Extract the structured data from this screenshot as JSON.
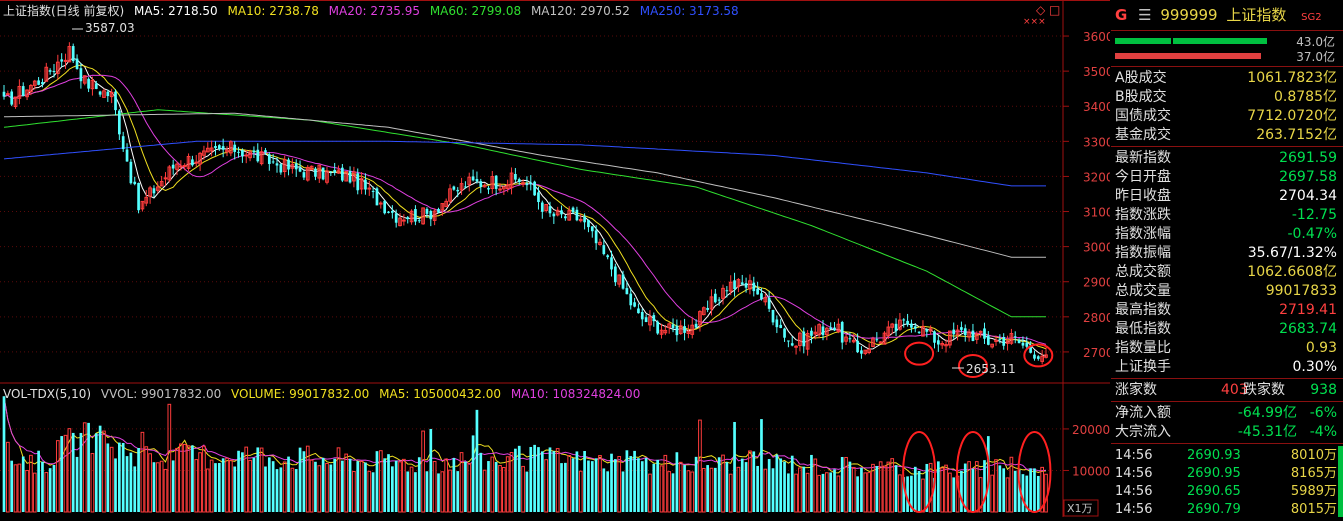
{
  "header": {
    "title": "上证指数(日线 前复权)",
    "ma": [
      {
        "label": "MA5: 2718.50",
        "color": "#ffffff"
      },
      {
        "label": "MA10: 2738.78",
        "color": "#f0e020"
      },
      {
        "label": "MA20: 2735.95",
        "color": "#e040e0"
      },
      {
        "label": "MA60: 2799.08",
        "color": "#30e030"
      },
      {
        "label": "MA120: 2970.52",
        "color": "#c0c0c0"
      },
      {
        "label": "MA250: 3173.58",
        "color": "#3050ff"
      }
    ]
  },
  "volume_header": {
    "title": "VOL-TDX(5,10)",
    "items": [
      {
        "label": "VVOL: 99017832.00",
        "color": "#c0c0c0"
      },
      {
        "label": "VOLUME: 99017832.00",
        "color": "#f0e020"
      },
      {
        "label": "MA5: 105000432.00",
        "color": "#f0e020"
      },
      {
        "label": "MA10: 108324824.00",
        "color": "#e040e0"
      }
    ]
  },
  "annotations": {
    "high": "3587.03",
    "low": "2653.11"
  },
  "icons": {
    "diamond": "◇",
    "square": "□",
    "crosses": "×××"
  },
  "volume_unit": "X1万",
  "chart_data": [
    {
      "type": "candlestick",
      "title": "上证指数(日线 前复权)",
      "ylim": [
        2620,
        3640
      ],
      "y_ticks": [
        2700,
        2800,
        2900,
        3000,
        3100,
        3200,
        3300,
        3400,
        3500,
        3600
      ],
      "anchors_x_index": [
        0,
        10,
        17,
        21,
        28,
        35,
        45,
        60,
        75,
        90,
        102,
        110,
        120,
        135,
        142,
        150,
        158,
        165,
        173,
        180,
        188,
        195,
        205,
        215,
        222,
        229,
        236,
        243,
        250,
        256,
        262,
        267,
        271
      ],
      "anchors_close": [
        3410,
        3480,
        3560,
        3470,
        3430,
        3110,
        3240,
        3280,
        3220,
        3200,
        3090,
        3090,
        3180,
        3190,
        3090,
        3080,
        2940,
        2800,
        2760,
        2780,
        2890,
        2890,
        2720,
        2780,
        2700,
        2750,
        2790,
        2730,
        2760,
        2730,
        2740,
        2705,
        2692
      ],
      "ma_lines": [
        {
          "name": "MA60",
          "color": "#30e030",
          "anchors_x_index": [
            0,
            40,
            80,
            120,
            150,
            180,
            210,
            240,
            262
          ],
          "values": [
            3340,
            3390,
            3360,
            3290,
            3220,
            3170,
            3060,
            2930,
            2800
          ]
        },
        {
          "name": "MA120",
          "color": "#c0c0c0",
          "anchors_x_index": [
            0,
            60,
            100,
            140,
            170,
            200,
            230,
            262
          ],
          "values": [
            3370,
            3380,
            3340,
            3260,
            3210,
            3140,
            3060,
            2970
          ]
        },
        {
          "name": "MA250",
          "color": "#3050ff",
          "anchors_x_index": [
            0,
            50,
            100,
            150,
            200,
            240,
            262
          ],
          "values": [
            3250,
            3300,
            3300,
            3290,
            3260,
            3210,
            3173
          ]
        }
      ],
      "last": {
        "close": 2691.59,
        "high": 2719.41,
        "low": 2683.74
      },
      "extremes": {
        "high": 3587.03,
        "low": 2653.11
      }
    },
    {
      "type": "bar",
      "title": "VOL-TDX(5,10)",
      "ylim": [
        0,
        26000
      ],
      "y_ticks": [
        10000,
        20000
      ],
      "unit": "X1万",
      "anchors_x_index": [
        0,
        10,
        20,
        40,
        60,
        100,
        140,
        170,
        200,
        230,
        262
      ],
      "anchors_value": [
        14000,
        12000,
        18000,
        13000,
        14000,
        12000,
        13000,
        11500,
        12000,
        10500,
        9900
      ]
    }
  ],
  "panel": {
    "letter": "G",
    "code": "999999",
    "name": "上证指数",
    "badge": "SG2",
    "bar_top_value": "43.0亿",
    "bar_bottom_value": "37.0亿",
    "turnover": [
      {
        "label": "A股成交",
        "value": "1061.7823亿"
      },
      {
        "label": "B股成交",
        "value": "0.8785亿"
      },
      {
        "label": "国债成交",
        "value": "7712.0720亿"
      },
      {
        "label": "基金成交",
        "value": "263.7152亿"
      }
    ],
    "stats": [
      {
        "label": "最新指数",
        "value": "2691.59",
        "color": "green"
      },
      {
        "label": "今日开盘",
        "value": "2697.58",
        "color": "green"
      },
      {
        "label": "昨日收盘",
        "value": "2704.34",
        "color": "white"
      },
      {
        "label": "指数涨跌",
        "value": "-12.75",
        "color": "green"
      },
      {
        "label": "指数涨幅",
        "value": "-0.47%",
        "color": "green"
      },
      {
        "label": "指数振幅",
        "value": "35.67/1.32%",
        "color": "white"
      },
      {
        "label": "总成交额",
        "value": "1062.6608亿",
        "color": "yellow"
      },
      {
        "label": "总成交量",
        "value": "99017833",
        "color": "yellow"
      },
      {
        "label": "最高指数",
        "value": "2719.41",
        "color": "red"
      },
      {
        "label": "最低指数",
        "value": "2683.74",
        "color": "green"
      },
      {
        "label": "指数量比",
        "value": "0.93",
        "color": "yellow"
      },
      {
        "label": "上证换手",
        "value": "0.30%",
        "color": "white"
      }
    ],
    "breadth": {
      "up_label": "涨家数",
      "up": "403",
      "down_label": "跌家数",
      "down": "938"
    },
    "flows": [
      {
        "label": "净流入额",
        "value": "-64.99亿",
        "pct": "-6%"
      },
      {
        "label": "大宗流入",
        "value": "-45.31亿",
        "pct": "-4%"
      }
    ],
    "ticks": [
      {
        "time": "14:56",
        "price": "2690.93",
        "vol": "8010万"
      },
      {
        "time": "14:56",
        "price": "2690.95",
        "vol": "8165万"
      },
      {
        "time": "14:56",
        "price": "2690.65",
        "vol": "5989万"
      },
      {
        "time": "14:56",
        "price": "2690.79",
        "vol": "8015万"
      }
    ]
  }
}
